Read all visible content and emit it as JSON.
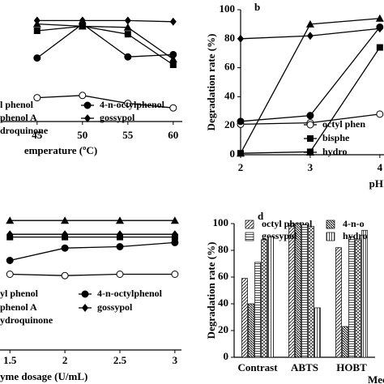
{
  "chart_data": [
    {
      "type": "line",
      "x": [
        45,
        50,
        55,
        60
      ],
      "xlim": [
        41,
        61
      ],
      "ylim": [
        0,
        100
      ],
      "xticks": [
        45,
        50,
        55,
        60
      ],
      "x_label": "emperature (ºC)",
      "series": [
        {
          "name": "l phenol",
          "marker": "circle-open",
          "color": "#000",
          "values": [
            21,
            23,
            16,
            12
          ]
        },
        {
          "name": "phenol A",
          "marker": "square",
          "color": "#000",
          "values": [
            80,
            84,
            77,
            50
          ]
        },
        {
          "name": "droquinone",
          "marker": "triangle",
          "color": "#000",
          "values": [
            86,
            84,
            83,
            55
          ]
        },
        {
          "name": "4-n-octylphenol",
          "marker": "circle",
          "color": "#000",
          "values": [
            56,
            86,
            57,
            59
          ]
        },
        {
          "name": "gossypol",
          "marker": "diamond",
          "color": "#000",
          "values": [
            89,
            89,
            89,
            88
          ]
        }
      ]
    },
    {
      "type": "line",
      "x": [
        2,
        3,
        4
      ],
      "xlim": [
        2,
        4.06
      ],
      "ylim": [
        0,
        100
      ],
      "xticks": [
        2,
        3,
        4
      ],
      "yticks": [
        0,
        20,
        40,
        60,
        80,
        100
      ],
      "x_label": "pH",
      "y_label": "Degradation rate (%)",
      "panel_label": "b",
      "series": [
        {
          "name": "octyl phen",
          "marker": "circle-open",
          "color": "#000",
          "values": [
            21,
            22,
            28
          ]
        },
        {
          "name": "bisphe",
          "marker": "square",
          "color": "#000",
          "values": [
            1,
            2,
            74
          ]
        },
        {
          "name": "hydro",
          "marker": "triangle",
          "color": "#000",
          "values": [
            1,
            90,
            94
          ]
        },
        {
          "marker": "circle",
          "color": "#000",
          "values": [
            23,
            27,
            88
          ]
        },
        {
          "marker": "diamond",
          "color": "#000",
          "values": [
            80,
            82,
            87
          ]
        }
      ]
    },
    {
      "type": "line",
      "x": [
        1.5,
        2,
        2.5,
        3
      ],
      "xlim": [
        1.41,
        3.06
      ],
      "ylim": [
        0,
        100
      ],
      "xticks": [
        1.5,
        2,
        2.5,
        3
      ],
      "x_label": "yme dosage (U/mL)",
      "series": [
        {
          "name": "yl phenol",
          "marker": "circle-open",
          "color": "#000",
          "values": [
            55,
            54,
            55,
            55
          ]
        },
        {
          "name": "phenol A",
          "marker": "square",
          "color": "#000",
          "values": [
            82,
            82,
            82,
            82
          ]
        },
        {
          "name": "ydroquinone",
          "marker": "triangle",
          "color": "#000",
          "values": [
            94,
            94,
            94,
            94
          ]
        },
        {
          "name": "4-n-octylphenol",
          "marker": "circle",
          "color": "#000",
          "values": [
            65,
            74,
            75,
            78
          ]
        },
        {
          "name": "gossypol",
          "marker": "diamond",
          "color": "#000",
          "values": [
            84,
            84,
            84,
            84
          ]
        }
      ]
    },
    {
      "type": "bar",
      "categories": [
        "Contrast",
        "ABTS",
        "HOBT"
      ],
      "ylim": [
        0,
        100
      ],
      "yticks": [
        0,
        20,
        40,
        60,
        80,
        100
      ],
      "x_label": "Mec",
      "y_label": "Degradation rate (%)",
      "panel_label": "d",
      "series": [
        {
          "name": "octyl phenol",
          "pattern": "pat-diag",
          "values": [
            59,
            100,
            82
          ]
        },
        {
          "name": "4-n-o",
          "pattern": "pat-dense",
          "values": [
            40,
            100,
            23
          ]
        },
        {
          "name": "gossypol",
          "pattern": "pat-horiz",
          "values": [
            71,
            99,
            90
          ]
        },
        {
          "pattern": "pat-cross",
          "values": [
            88,
            98,
            88
          ]
        },
        {
          "name": "hydro",
          "pattern": "pat-vert",
          "values": [
            90,
            37,
            95
          ]
        }
      ]
    }
  ]
}
